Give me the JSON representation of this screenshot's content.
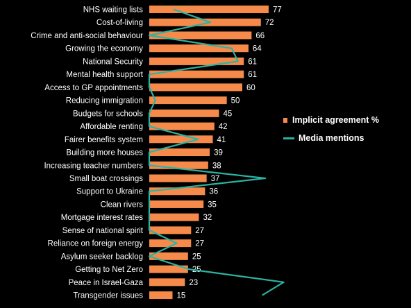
{
  "chart_data": {
    "type": "bar",
    "orientation": "horizontal",
    "categories": [
      "NHS waiting lists",
      "Cost-of-living",
      "Crime and anti-social behaviour",
      "Growing the economy",
      "National Security",
      "Mental health support",
      "Access to GP appointments",
      "Reducing immigration",
      "Budgets for schools",
      "Affordable renting",
      "Fairer benefits system",
      "Building more houses",
      "Increasing teacher numbers",
      "Small boat crossings",
      "Support to Ukraine",
      "Clean rivers",
      "Mortgage interest rates",
      "Sense of national spirit",
      "Reliance on foreign energy",
      "Asylum seeker backlog",
      "Getting to Net Zero",
      "Peace in Israel-Gaza",
      "Transgender issues"
    ],
    "series": [
      {
        "name": "Implicit agreement %",
        "type": "bar",
        "color": "#f58a4b",
        "values": [
          77,
          72,
          66,
          64,
          61,
          61,
          60,
          50,
          45,
          42,
          41,
          39,
          38,
          37,
          36,
          35,
          32,
          27,
          27,
          25,
          25,
          23,
          15
        ]
      },
      {
        "name": "Media mentions",
        "type": "line",
        "color": "#2bb3a3",
        "values": [
          8,
          20,
          0,
          27,
          29,
          0,
          0,
          2,
          0,
          0,
          16,
          0,
          0,
          38,
          0,
          0,
          0,
          0,
          9,
          0,
          13,
          44,
          37
        ]
      }
    ],
    "xlim": [
      0,
      100
    ],
    "grid": false,
    "legend_position": "right",
    "data_labels": true
  }
}
